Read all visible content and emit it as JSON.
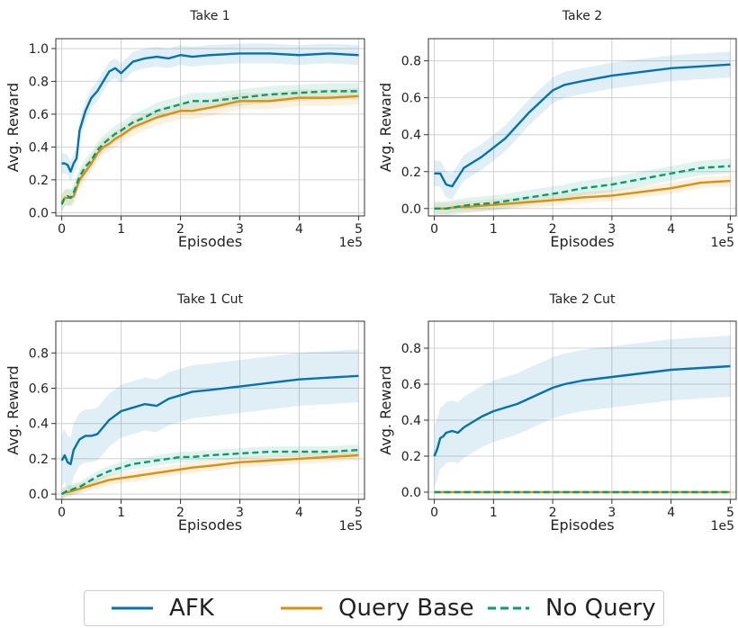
{
  "colors": {
    "afk": "#0173b2",
    "query_base": "#de8f05",
    "no_query": "#029e73",
    "grid": "#d0d0d0",
    "axis": "#333333"
  },
  "legend": [
    {
      "label": "AFK",
      "style": "solid",
      "color": "#0173b2"
    },
    {
      "label": "Query Base",
      "style": "solid",
      "color": "#de8f05"
    },
    {
      "label": "No Query",
      "style": "dashed",
      "color": "#029e73"
    }
  ],
  "chart_data": [
    {
      "type": "line",
      "title": "Take 1",
      "xlabel": "Episodes",
      "ylabel": "Avg. Reward",
      "x_offset_label": "1e5",
      "xlim": [
        -0.1,
        5.1
      ],
      "ylim": [
        -0.02,
        1.06
      ],
      "xticks": [
        0,
        1,
        2,
        3,
        4,
        5
      ],
      "yticks": [
        0.0,
        0.2,
        0.4,
        0.6,
        0.8,
        1.0
      ],
      "ytick_labels": [
        "0.0",
        "0.2",
        "0.4",
        "0.6",
        "0.8",
        "1.0"
      ],
      "grid": true,
      "x": [
        0,
        0.05,
        0.1,
        0.15,
        0.2,
        0.25,
        0.3,
        0.4,
        0.5,
        0.6,
        0.7,
        0.8,
        0.9,
        1.0,
        1.2,
        1.4,
        1.6,
        1.8,
        2.0,
        2.2,
        2.5,
        3.0,
        3.5,
        4.0,
        4.5,
        5.0
      ],
      "series": [
        {
          "name": "AFK",
          "color": "#0173b2",
          "dashed": false,
          "band": 0.06,
          "values": [
            0.3,
            0.3,
            0.29,
            0.25,
            0.3,
            0.33,
            0.5,
            0.62,
            0.7,
            0.74,
            0.8,
            0.86,
            0.88,
            0.85,
            0.92,
            0.94,
            0.95,
            0.94,
            0.96,
            0.95,
            0.96,
            0.97,
            0.97,
            0.96,
            0.97,
            0.96
          ]
        },
        {
          "name": "Query Base",
          "color": "#de8f05",
          "dashed": false,
          "band": 0.05,
          "values": [
            0.06,
            0.09,
            0.09,
            0.09,
            0.1,
            0.15,
            0.2,
            0.25,
            0.3,
            0.36,
            0.4,
            0.42,
            0.45,
            0.47,
            0.52,
            0.55,
            0.58,
            0.6,
            0.62,
            0.62,
            0.64,
            0.68,
            0.68,
            0.7,
            0.7,
            0.71
          ]
        },
        {
          "name": "No Query",
          "color": "#029e73",
          "dashed": true,
          "band": 0.05,
          "values": [
            0.05,
            0.09,
            0.1,
            0.09,
            0.12,
            0.17,
            0.22,
            0.28,
            0.32,
            0.38,
            0.42,
            0.45,
            0.48,
            0.5,
            0.55,
            0.58,
            0.62,
            0.64,
            0.66,
            0.68,
            0.68,
            0.7,
            0.72,
            0.73,
            0.74,
            0.74
          ]
        }
      ]
    },
    {
      "type": "line",
      "title": "Take 2",
      "xlabel": "Episodes",
      "ylabel": "Avg. Reward",
      "x_offset_label": "1e5",
      "xlim": [
        -0.1,
        5.1
      ],
      "ylim": [
        -0.04,
        0.92
      ],
      "xticks": [
        0,
        1,
        2,
        3,
        4,
        5
      ],
      "yticks": [
        0.0,
        0.2,
        0.4,
        0.6,
        0.8
      ],
      "ytick_labels": [
        "0.0",
        "0.2",
        "0.4",
        "0.6",
        "0.8"
      ],
      "grid": true,
      "x": [
        0,
        0.1,
        0.2,
        0.3,
        0.4,
        0.5,
        0.6,
        0.8,
        1.0,
        1.2,
        1.4,
        1.6,
        1.8,
        2.0,
        2.2,
        2.5,
        3.0,
        3.5,
        4.0,
        4.5,
        5.0
      ],
      "series": [
        {
          "name": "AFK",
          "color": "#0173b2",
          "dashed": false,
          "band": 0.07,
          "values": [
            0.19,
            0.19,
            0.13,
            0.12,
            0.17,
            0.22,
            0.24,
            0.28,
            0.33,
            0.38,
            0.45,
            0.52,
            0.58,
            0.64,
            0.67,
            0.69,
            0.72,
            0.74,
            0.76,
            0.77,
            0.78
          ]
        },
        {
          "name": "Query Base",
          "color": "#de8f05",
          "dashed": false,
          "band": 0.03,
          "values": [
            0.0,
            0.0,
            0.0,
            0.005,
            0.01,
            0.01,
            0.01,
            0.015,
            0.02,
            0.025,
            0.03,
            0.035,
            0.04,
            0.045,
            0.05,
            0.06,
            0.07,
            0.09,
            0.11,
            0.14,
            0.15
          ]
        },
        {
          "name": "No Query",
          "color": "#029e73",
          "dashed": true,
          "band": 0.04,
          "values": [
            0.0,
            0.0,
            0.0,
            0.005,
            0.01,
            0.015,
            0.02,
            0.025,
            0.03,
            0.04,
            0.05,
            0.06,
            0.07,
            0.08,
            0.09,
            0.11,
            0.13,
            0.16,
            0.19,
            0.22,
            0.23
          ]
        }
      ]
    },
    {
      "type": "line",
      "title": "Take 1 Cut",
      "xlabel": "Episodes",
      "ylabel": "Avg. Reward",
      "x_offset_label": "1e5",
      "xlim": [
        -0.1,
        5.1
      ],
      "ylim": [
        -0.03,
        0.98
      ],
      "xticks": [
        0,
        1,
        2,
        3,
        4,
        5
      ],
      "yticks": [
        0.0,
        0.2,
        0.4,
        0.6,
        0.8
      ],
      "ytick_labels": [
        "0.0",
        "0.2",
        "0.4",
        "0.6",
        "0.8"
      ],
      "grid": true,
      "x": [
        0,
        0.05,
        0.1,
        0.15,
        0.2,
        0.3,
        0.4,
        0.5,
        0.6,
        0.8,
        1.0,
        1.2,
        1.4,
        1.6,
        1.8,
        2.0,
        2.2,
        2.5,
        3.0,
        3.5,
        4.0,
        4.5,
        5.0
      ],
      "series": [
        {
          "name": "AFK",
          "color": "#0173b2",
          "dashed": false,
          "band": 0.15,
          "values": [
            0.19,
            0.22,
            0.18,
            0.17,
            0.25,
            0.31,
            0.33,
            0.33,
            0.34,
            0.42,
            0.47,
            0.49,
            0.51,
            0.5,
            0.54,
            0.56,
            0.58,
            0.59,
            0.61,
            0.63,
            0.65,
            0.66,
            0.67
          ]
        },
        {
          "name": "Query Base",
          "color": "#de8f05",
          "dashed": false,
          "band": 0.03,
          "values": [
            0.0,
            0.01,
            0.01,
            0.015,
            0.02,
            0.03,
            0.04,
            0.05,
            0.06,
            0.08,
            0.09,
            0.1,
            0.11,
            0.12,
            0.13,
            0.14,
            0.15,
            0.16,
            0.18,
            0.19,
            0.2,
            0.21,
            0.22
          ]
        },
        {
          "name": "No Query",
          "color": "#029e73",
          "dashed": true,
          "band": 0.03,
          "values": [
            0.0,
            0.01,
            0.02,
            0.02,
            0.03,
            0.04,
            0.06,
            0.08,
            0.1,
            0.13,
            0.15,
            0.17,
            0.18,
            0.19,
            0.2,
            0.21,
            0.21,
            0.22,
            0.23,
            0.24,
            0.24,
            0.24,
            0.25
          ]
        }
      ]
    },
    {
      "type": "line",
      "title": "Take 2 Cut",
      "xlabel": "Episodes",
      "ylabel": "Avg. Reward",
      "x_offset_label": "1e5",
      "xlim": [
        -0.1,
        5.1
      ],
      "ylim": [
        -0.04,
        0.95
      ],
      "xticks": [
        0,
        1,
        2,
        3,
        4,
        5
      ],
      "yticks": [
        0.0,
        0.2,
        0.4,
        0.6,
        0.8
      ],
      "ytick_labels": [
        "0.0",
        "0.2",
        "0.4",
        "0.6",
        "0.8"
      ],
      "grid": true,
      "x": [
        0,
        0.05,
        0.1,
        0.15,
        0.2,
        0.3,
        0.4,
        0.5,
        0.6,
        0.8,
        1.0,
        1.2,
        1.4,
        1.6,
        1.8,
        2.0,
        2.2,
        2.5,
        3.0,
        3.5,
        4.0,
        4.5,
        5.0
      ],
      "series": [
        {
          "name": "AFK",
          "color": "#0173b2",
          "dashed": false,
          "band": 0.17,
          "values": [
            0.2,
            0.24,
            0.3,
            0.31,
            0.33,
            0.34,
            0.33,
            0.36,
            0.38,
            0.42,
            0.45,
            0.47,
            0.49,
            0.52,
            0.55,
            0.58,
            0.6,
            0.62,
            0.64,
            0.66,
            0.68,
            0.69,
            0.7
          ]
        },
        {
          "name": "Query Base",
          "color": "#de8f05",
          "dashed": false,
          "band": 0.0,
          "values": [
            0.0,
            0.0,
            0.0,
            0.0,
            0.0,
            0.0,
            0.0,
            0.0,
            0.0,
            0.0,
            0.0,
            0.0,
            0.0,
            0.0,
            0.0,
            0.0,
            0.0,
            0.0,
            0.0,
            0.0,
            0.0,
            0.0,
            0.0
          ]
        },
        {
          "name": "No Query",
          "color": "#029e73",
          "dashed": true,
          "band": 0.0,
          "values": [
            0.0,
            0.0,
            0.0,
            0.0,
            0.0,
            0.0,
            0.0,
            0.0,
            0.0,
            0.0,
            0.0,
            0.0,
            0.0,
            0.0,
            0.0,
            0.0,
            0.0,
            0.0,
            0.0,
            0.0,
            0.0,
            0.0,
            0.0
          ]
        }
      ]
    }
  ]
}
